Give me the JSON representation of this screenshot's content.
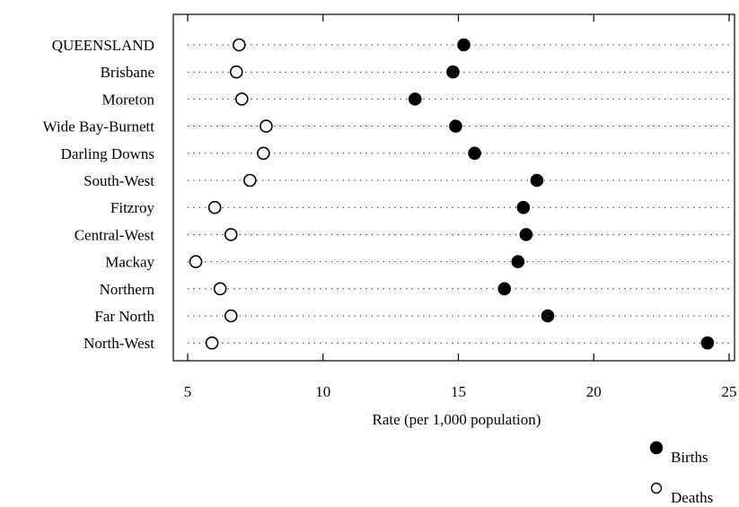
{
  "chart_data": {
    "type": "scatter",
    "title": "",
    "xlabel": "Rate (per 1,000 population)",
    "ylabel": "",
    "xlim": [
      5,
      25
    ],
    "xticks": [
      5,
      10,
      15,
      20,
      25
    ],
    "grid": true,
    "legend_position": "bottom-right",
    "categories": [
      "QUEENSLAND",
      "Brisbane",
      "Moreton",
      "Wide Bay-Burnett",
      "Darling Downs",
      "South-West",
      "Fitzroy",
      "Central-West",
      "Mackay",
      "Northern",
      "Far North",
      "North-West"
    ],
    "series": [
      {
        "name": "Births",
        "marker": "filled-circle",
        "values": [
          15.2,
          14.8,
          13.4,
          14.9,
          15.6,
          17.9,
          17.4,
          17.5,
          17.2,
          16.7,
          18.3,
          24.2
        ]
      },
      {
        "name": "Deaths",
        "marker": "open-circle",
        "values": [
          6.9,
          6.8,
          7.0,
          7.9,
          7.8,
          7.3,
          6.0,
          6.6,
          5.3,
          6.2,
          6.6,
          5.9
        ]
      }
    ]
  }
}
